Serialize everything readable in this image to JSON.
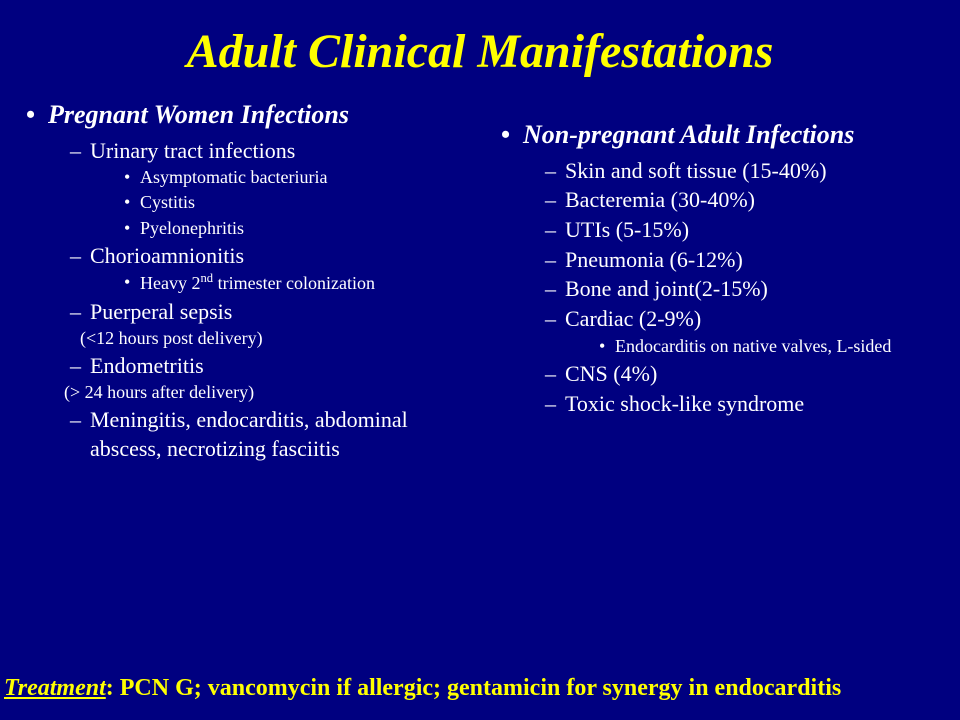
{
  "colors": {
    "background": "#000080",
    "title": "#ffff00",
    "body": "#ffffff",
    "treatment": "#ffff00"
  },
  "title": "Adult Clinical Manifestations",
  "left": {
    "header": "Pregnant Women Infections",
    "uti": "Urinary tract infections",
    "uti_sub1": "Asymptomatic bacteriuria",
    "uti_sub2": "Cystitis",
    "uti_sub3": "Pyelonephritis",
    "chorio": "Chorioamnionitis",
    "chorio_sub_pre": "Heavy 2",
    "chorio_sub_sup": "nd",
    "chorio_sub_post": " trimester colonization",
    "puerperal": "Puerperal sepsis",
    "puerperal_note": "(<12 hours post delivery)",
    "endometritis": "Endometritis",
    "endometritis_note": "(> 24 hours after delivery)",
    "other": "Meningitis, endocarditis, abdominal abscess, necrotizing fasciitis"
  },
  "right": {
    "header": "Non-pregnant Adult Infections",
    "skin": "Skin and soft tissue (15-40%)",
    "bact": "Bacteremia (30-40%)",
    "uti": "UTIs (5-15%)",
    "pneu": "Pneumonia (6-12%)",
    "bone": "Bone and joint(2-15%)",
    "cardiac": "Cardiac (2-9%)",
    "cardiac_sub": "Endocarditis on native valves, L-sided",
    "cns": "CNS (4%)",
    "toxic": "Toxic shock-like syndrome"
  },
  "treatment": {
    "label": "Treatment",
    "text": ":  PCN G; vancomycin if allergic; gentamicin for synergy in endocarditis"
  }
}
